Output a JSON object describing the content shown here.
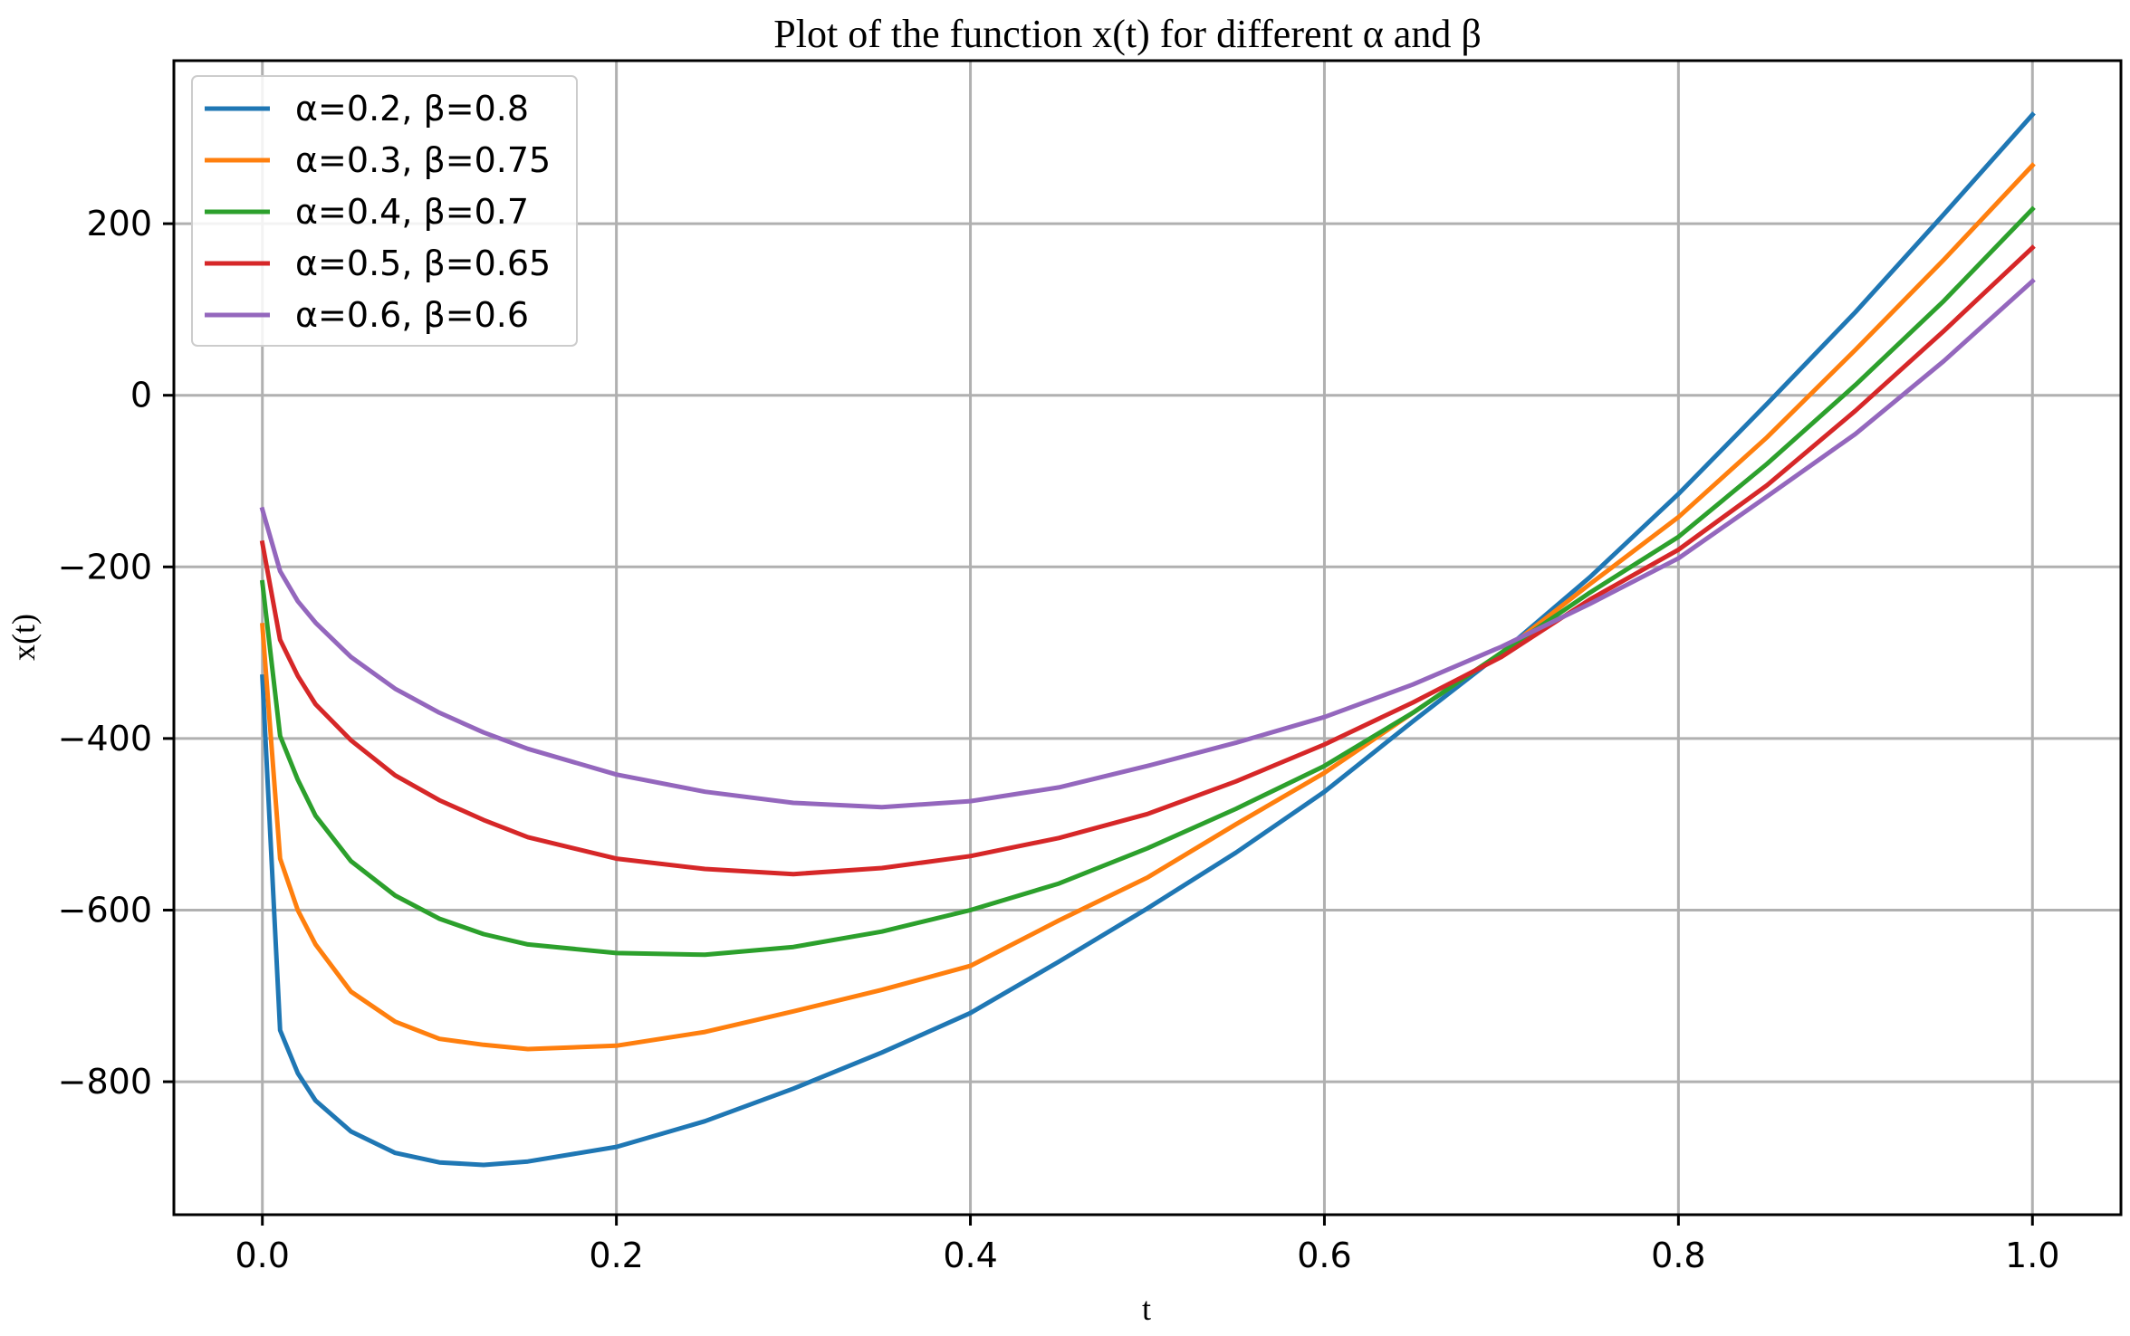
{
  "chart_data": {
    "type": "line",
    "title": "Plot of the function x(t) for different α and β",
    "xlabel": "t",
    "ylabel": "x(t)",
    "xlim": [
      -0.05,
      1.05
    ],
    "ylim": [
      -955,
      390
    ],
    "xticks": [
      0.0,
      0.2,
      0.4,
      0.6,
      0.8,
      1.0
    ],
    "xtick_labels": [
      "0.0",
      "0.2",
      "0.4",
      "0.6",
      "0.8",
      "1.0"
    ],
    "yticks": [
      -800,
      -600,
      -400,
      -200,
      0,
      200
    ],
    "ytick_labels": [
      "−800",
      "−600",
      "−400",
      "−200",
      "0",
      "200"
    ],
    "grid": true,
    "legend_position": "top-left",
    "x": [
      0.0,
      0.01,
      0.02,
      0.03,
      0.05,
      0.075,
      0.1,
      0.125,
      0.15,
      0.2,
      0.25,
      0.3,
      0.35,
      0.4,
      0.45,
      0.5,
      0.55,
      0.6,
      0.65,
      0.7,
      0.75,
      0.8,
      0.85,
      0.9,
      0.95,
      1.0
    ],
    "series": [
      {
        "name": "α=0.2, β=0.8",
        "color": "#1f77b4",
        "values": [
          -328,
          -740,
          -790,
          -822,
          -858,
          -883,
          -894,
          -897,
          -893,
          -876,
          -846,
          -808,
          -766,
          -720,
          -660,
          -598,
          -533,
          -462,
          -380,
          -300,
          -212,
          -115,
          -10,
          97,
          211,
          327
        ]
      },
      {
        "name": "α=0.3, β=0.75",
        "color": "#ff7f0e",
        "values": [
          -268,
          -540,
          -600,
          -640,
          -695,
          -730,
          -750,
          -757,
          -762,
          -758,
          -742,
          -718,
          -693,
          -665,
          -612,
          -562,
          -500,
          -440,
          -370,
          -300,
          -220,
          -142,
          -49,
          53,
          158,
          268
        ]
      },
      {
        "name": "α=0.4, β=0.7",
        "color": "#2ca02c",
        "values": [
          -218,
          -397,
          -448,
          -490,
          -543,
          -583,
          -610,
          -628,
          -640,
          -650,
          -652,
          -643,
          -625,
          -600,
          -569,
          -528,
          -482,
          -432,
          -370,
          -300,
          -230,
          -165,
          -80,
          12,
          110,
          217
        ]
      },
      {
        "name": "α=0.5, β=0.65",
        "color": "#d62728",
        "values": [
          -172,
          -285,
          -327,
          -360,
          -402,
          -443,
          -472,
          -495,
          -515,
          -540,
          -552,
          -558,
          -551,
          -537,
          -516,
          -488,
          -450,
          -407,
          -358,
          -305,
          -238,
          -180,
          -105,
          -18,
          75,
          172
        ]
      },
      {
        "name": "α=0.6, β=0.6",
        "color": "#9467bd",
        "values": [
          -133,
          -205,
          -240,
          -265,
          -305,
          -342,
          -370,
          -393,
          -412,
          -442,
          -462,
          -475,
          -480,
          -473,
          -457,
          -432,
          -405,
          -375,
          -337,
          -293,
          -243,
          -190,
          -118,
          -45,
          40,
          133
        ]
      }
    ]
  }
}
